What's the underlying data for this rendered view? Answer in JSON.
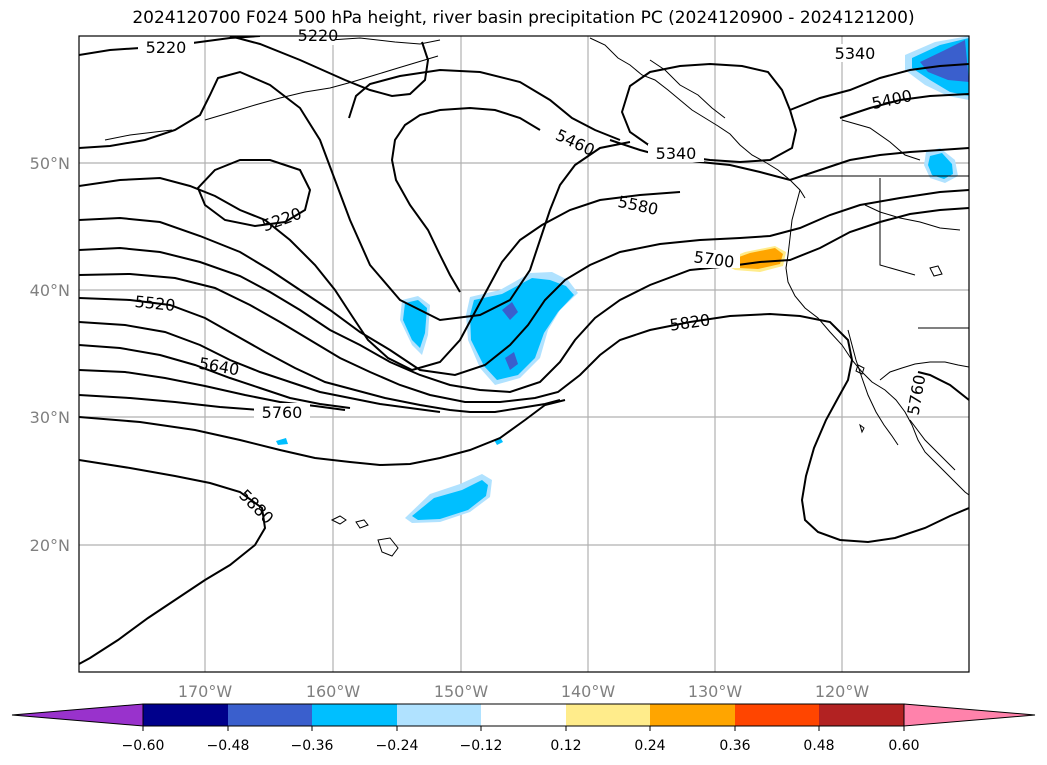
{
  "title": "2024120700 F024 500 hPa height, river basin precipitation PC (2024120900 - 2024121200)",
  "map": {
    "lon_labels": [
      "170°W",
      "160°W",
      "150°W",
      "140°W",
      "130°W",
      "120°W"
    ],
    "lat_labels": [
      "50°N",
      "40°N",
      "30°N",
      "20°N"
    ],
    "contour_labels": [
      "5220",
      "5220",
      "5220",
      "5340",
      "5340",
      "5400",
      "5460",
      "5580",
      "5700",
      "5520",
      "5640",
      "5760",
      "5820",
      "5880",
      "5760"
    ]
  },
  "colorbar": {
    "colors": [
      "#9932cc",
      "#00008b",
      "#3a5fcd",
      "#00bfff",
      "#b0e2ff",
      "#ffffff",
      "#ffec8b",
      "#ffa500",
      "#ff4500",
      "#b22222",
      "#ff82ab"
    ],
    "tick_labels": [
      "−0.60",
      "−0.48",
      "−0.36",
      "−0.24",
      "−0.12",
      "0.12",
      "0.24",
      "0.36",
      "0.48",
      "0.60"
    ]
  }
}
